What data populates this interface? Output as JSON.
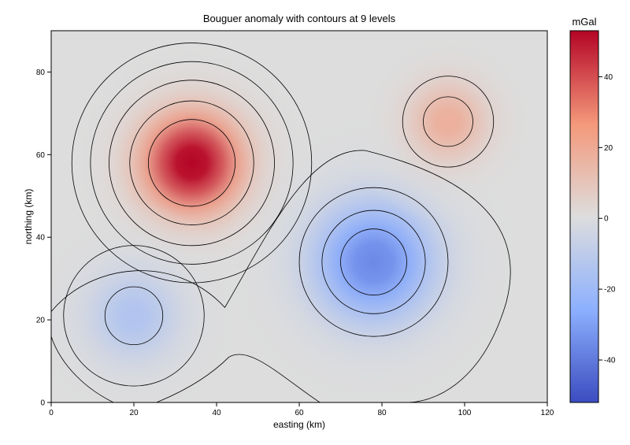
{
  "chart_data": {
    "type": "heatmap",
    "title": "Bouguer anomaly with contours at 9 levels",
    "xlabel": "easting (km)",
    "ylabel": "northing (km)",
    "xlim": [
      0,
      120
    ],
    "ylim": [
      0,
      90
    ],
    "xticks": [
      0,
      20,
      40,
      60,
      80,
      100,
      120
    ],
    "yticks": [
      0,
      20,
      40,
      60,
      80
    ],
    "colorbar": {
      "label": "mGal",
      "range": [
        -52,
        53
      ],
      "ticks": [
        -40,
        -20,
        0,
        20,
        40
      ],
      "colormap": "coolwarm",
      "stops": [
        "#3b4cc0",
        "#dddddd",
        "#b40426"
      ]
    },
    "grid": false,
    "contour_levels": 9,
    "anomalies": [
      {
        "easting": 34,
        "northing": 58,
        "amplitude": 54,
        "sigma": 10
      },
      {
        "easting": 78,
        "northing": 34,
        "amplitude": -36,
        "sigma": 12
      },
      {
        "easting": 96,
        "northing": 68,
        "amplitude": 18,
        "sigma": 8
      },
      {
        "easting": 20,
        "northing": 21,
        "amplitude": -14,
        "sigma": 9
      }
    ]
  }
}
